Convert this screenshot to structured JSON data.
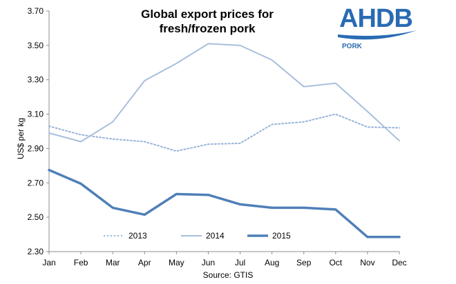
{
  "header": {
    "title_line1": "Global export prices for",
    "title_line2": "fresh/frozen pork"
  },
  "logo": {
    "brand": "AHDB",
    "sub": "PORK"
  },
  "source": "Source: GTIS",
  "chart_data": {
    "type": "line",
    "title": "Global export prices for fresh/frozen pork",
    "xlabel": "",
    "ylabel": "US$ per kg",
    "ylim": [
      2.3,
      3.7
    ],
    "yticks": [
      "2.30",
      "2.50",
      "2.70",
      "2.90",
      "3.10",
      "3.30",
      "3.50",
      "3.70"
    ],
    "grid": false,
    "legend_position": "bottom-center",
    "categories": [
      "Jan",
      "Feb",
      "Mar",
      "Apr",
      "May",
      "Jun",
      "Jul",
      "Aug",
      "Sep",
      "Oct",
      "Nov",
      "Dec"
    ],
    "series": [
      {
        "name": "2013",
        "style": "dotted",
        "color": "#95b3d7",
        "values": [
          3.03,
          2.98,
          2.955,
          2.94,
          2.885,
          2.925,
          2.93,
          3.04,
          3.055,
          3.1,
          3.025,
          3.02
        ]
      },
      {
        "name": "2014",
        "style": "solid-thin",
        "color": "#a7bfdc",
        "values": [
          2.99,
          2.94,
          3.055,
          3.295,
          3.395,
          3.51,
          3.5,
          3.415,
          3.26,
          3.28,
          3.115,
          2.945
        ]
      },
      {
        "name": "2015",
        "style": "solid-thick",
        "color": "#4f7fb8",
        "values": [
          2.775,
          2.695,
          2.555,
          2.515,
          2.635,
          2.63,
          2.575,
          2.555,
          2.555,
          2.545,
          2.385,
          2.385
        ]
      }
    ]
  }
}
